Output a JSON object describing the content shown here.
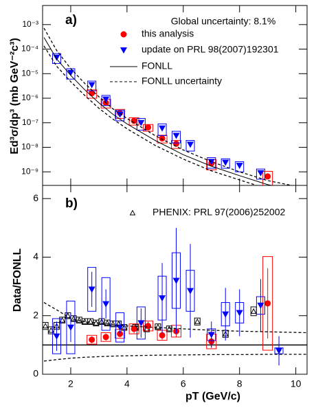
{
  "chart_data": [
    {
      "type": "scatter",
      "title": "a)",
      "annotation": "Global uncertainty: 8.1%",
      "ylabel": "Ed³σ/dp³ (mb GeV⁻²c³)",
      "log": true,
      "xlim": [
        1,
        10.4
      ],
      "xticks": [
        2,
        4,
        6,
        8,
        10
      ],
      "ylim": [
        2.8e-10,
        0.006
      ],
      "yticks": [
        {
          "value": 0.001,
          "label": "10⁻³"
        },
        {
          "value": 0.0001,
          "label": "10⁻⁴"
        },
        {
          "value": 1e-05,
          "label": "10⁻⁵"
        },
        {
          "value": 1e-06,
          "label": "10⁻⁶"
        },
        {
          "value": 1e-07,
          "label": "10⁻⁷"
        },
        {
          "value": 1e-08,
          "label": "10⁻⁸"
        },
        {
          "value": 1e-09,
          "label": "10⁻⁹"
        }
      ],
      "series": [
        {
          "name": "this analysis",
          "color": "#ff0000",
          "marker": "circle",
          "x": [
            2.75,
            3.25,
            3.75,
            4.25,
            4.75,
            5.25,
            5.75,
            7,
            9
          ],
          "values": [
            1.6e-06,
            6.5e-07,
            2.5e-07,
            1.2e-07,
            6.5e-08,
            2.3e-08,
            1.4e-08,
            2.2e-09,
            6.5e-10
          ],
          "sys": [
            6e-07,
            2.5e-07,
            1e-07,
            4e-08,
            2e-08,
            8e-09,
            5e-09,
            1e-09,
            4e-10
          ]
        },
        {
          "name": "update on PRL 98(2007)192301",
          "color": "#0000ff",
          "marker": "triangle-down",
          "x": [
            1.5,
            2,
            2.75,
            3.25,
            3.75,
            4.5,
            5.25,
            5.75,
            6.25,
            7,
            7.5,
            8,
            8.75
          ],
          "values": [
            4.6e-05,
            1.1e-05,
            3.5e-06,
            9e-07,
            2.2e-07,
            1e-07,
            6e-08,
            3e-08,
            1.3e-08,
            2.6e-09,
            2.4e-09,
            1.8e-09,
            9e-10
          ],
          "sys": [
            2e-05,
            5e-06,
            1.5e-06,
            4e-07,
            1e-07,
            5e-08,
            3e-08,
            1.5e-08,
            6e-09,
            1.2e-09,
            1e-09,
            8e-10,
            4e-10
          ]
        },
        {
          "name": "FONLL",
          "color": "#000000",
          "marker": "line",
          "x": [
            1.05,
            1.5,
            2,
            2.5,
            3,
            3.5,
            4,
            5,
            6,
            7,
            8,
            9,
            10.4
          ],
          "values": [
            0.0003,
            4e-05,
            8.5e-06,
            2.2e-06,
            6.5e-07,
            2.2e-07,
            9e-08,
            1.9e-08,
            5e-09,
            1.7e-09,
            7e-10,
            3e-10,
            1.5e-10
          ]
        },
        {
          "name": "FONLL uncertainty",
          "color": "#000000",
          "marker": "dashed",
          "x": [
            1.05,
            1.5,
            2,
            2.5,
            3,
            3.5,
            4,
            5,
            6,
            7,
            8,
            9,
            10.4
          ],
          "values_high": [
            0.00072,
            8.8e-05,
            1.6e-05,
            4e-06,
            1.15e-06,
            3.7e-07,
            1.5e-07,
            3e-08,
            7.8e-09,
            2.6e-09,
            1e-09,
            4.4e-10,
            2.1e-10
          ],
          "values_low": [
            0.000135,
            2e-05,
            4.7e-06,
            1.3e-06,
            3.9e-07,
            1.4e-07,
            5.7e-08,
            1.2e-08,
            3.3e-09,
            1.1e-09,
            4.7e-10,
            2e-10,
            1e-10
          ]
        }
      ]
    },
    {
      "type": "scatter",
      "title": "b)",
      "ylabel": "Data/FONLL",
      "xlabel": "pT (GeV/c)",
      "xlim": [
        1,
        10.4
      ],
      "xticks": [
        2,
        4,
        6,
        8,
        10
      ],
      "ylim": [
        0,
        6.45
      ],
      "yticks": [
        0,
        2,
        4,
        6
      ],
      "reference": 1,
      "series": [
        {
          "name": "PHENIX: PRL 97(2006)252002",
          "color": "#000000",
          "marker": "triangle-open",
          "x": [
            1.1,
            1.3,
            1.5,
            1.7,
            1.9,
            2.1,
            2.3,
            2.5,
            2.7,
            2.9,
            3.1,
            3.3,
            3.5,
            3.7,
            3.9,
            4.3,
            4.7,
            5.1,
            5.5,
            6.5,
            7.5,
            8.5
          ],
          "values": [
            1.65,
            1.5,
            1.65,
            1.85,
            2.0,
            1.9,
            1.85,
            1.8,
            1.8,
            1.75,
            1.8,
            1.75,
            1.72,
            1.72,
            1.6,
            1.6,
            1.55,
            1.62,
            1.55,
            1.8,
            1.38,
            2.15
          ],
          "sys": [
            0.12,
            0.12,
            0.12,
            0.1,
            0.1,
            0.1,
            0.1,
            0.1,
            0.1,
            0.1,
            0.1,
            0.1,
            0.1,
            0.1,
            0.1,
            0.1,
            0.1,
            0.1,
            0.1,
            0.12,
            0.12,
            0.15
          ]
        },
        {
          "color": "#ff0000",
          "marker": "circle",
          "x": [
            2.75,
            3.25,
            3.75,
            4.25,
            4.75,
            5.25,
            5.75,
            7,
            9
          ],
          "values": [
            1.18,
            1.27,
            1.38,
            1.55,
            1.65,
            1.33,
            1.47,
            1.12,
            2.42
          ],
          "stat": [
            0.12,
            0.12,
            0.12,
            0.15,
            0.15,
            0.15,
            0.2,
            0.2,
            1.2
          ],
          "sys": [
            0.15,
            0.15,
            0.15,
            0.17,
            0.17,
            0.17,
            0.2,
            0.25,
            1.6
          ]
        },
        {
          "color": "#0000ff",
          "marker": "triangle-down",
          "x": [
            1.5,
            2,
            2.75,
            3.25,
            3.75,
            4.5,
            5.25,
            5.75,
            6.25,
            7,
            7.5,
            8,
            8.75,
            9.4
          ],
          "values": [
            1.3,
            1.6,
            2.9,
            2.4,
            1.6,
            1.75,
            2.6,
            3.2,
            2.85,
            1.35,
            2.05,
            2.1,
            2.35,
            0.8
          ],
          "stat": [
            0.5,
            0.5,
            0.6,
            0.5,
            0.2,
            0.5,
            1.2,
            1.8,
            1.6,
            0.45,
            0.9,
            0.8,
            0.9,
            0.5
          ],
          "sys": [
            0.6,
            0.9,
            0.75,
            0.9,
            0.5,
            0.55,
            0.75,
            0.95,
            0.7,
            0.2,
            0.4,
            0.35,
            0.3,
            0.1
          ]
        },
        {
          "color": "#000000",
          "marker": "dashed",
          "x": [
            1.05,
            1.5,
            2,
            2.5,
            3,
            3.5,
            4,
            5,
            6,
            7,
            8,
            9,
            10.4
          ],
          "values_high": [
            2.45,
            2.2,
            1.9,
            1.8,
            1.75,
            1.7,
            1.65,
            1.6,
            1.55,
            1.5,
            1.47,
            1.45,
            1.42
          ],
          "values_low": [
            0.45,
            0.5,
            0.55,
            0.58,
            0.6,
            0.62,
            0.63,
            0.65,
            0.66,
            0.67,
            0.67,
            0.68,
            0.68
          ]
        }
      ]
    }
  ]
}
